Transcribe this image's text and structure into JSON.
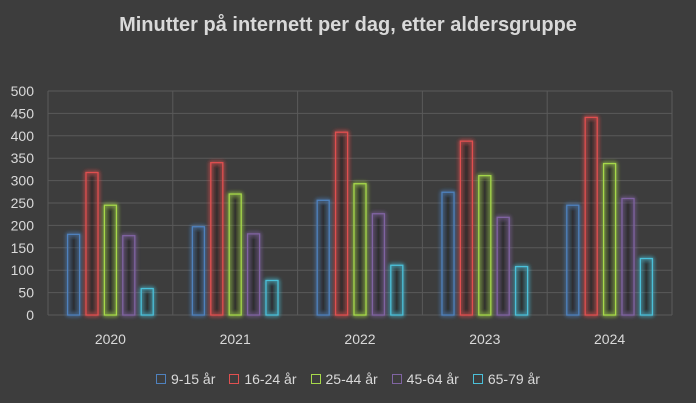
{
  "chart_data": {
    "type": "bar",
    "title": "Minutter på internett per dag, etter aldersgruppe",
    "categories": [
      "2020",
      "2021",
      "2022",
      "2023",
      "2024"
    ],
    "series": [
      {
        "name": "9-15 år",
        "color": "#4f81bd",
        "values": [
          180,
          197,
          256,
          274,
          245
        ]
      },
      {
        "name": "16-24 år",
        "color": "#e05050",
        "values": [
          318,
          340,
          408,
          388,
          441
        ]
      },
      {
        "name": "25-44 år",
        "color": "#a6d84a",
        "values": [
          245,
          270,
          293,
          311,
          338
        ]
      },
      {
        "name": "45-64 år",
        "color": "#8064a2",
        "values": [
          177,
          181,
          226,
          218,
          260
        ]
      },
      {
        "name": "65-79 år",
        "color": "#4bc0d9",
        "values": [
          59,
          77,
          111,
          108,
          126
        ]
      }
    ],
    "ylim": [
      0,
      500
    ],
    "yticks": [
      0,
      50,
      100,
      150,
      200,
      250,
      300,
      350,
      400,
      450,
      500
    ],
    "grid": true,
    "legend_position": "bottom"
  }
}
